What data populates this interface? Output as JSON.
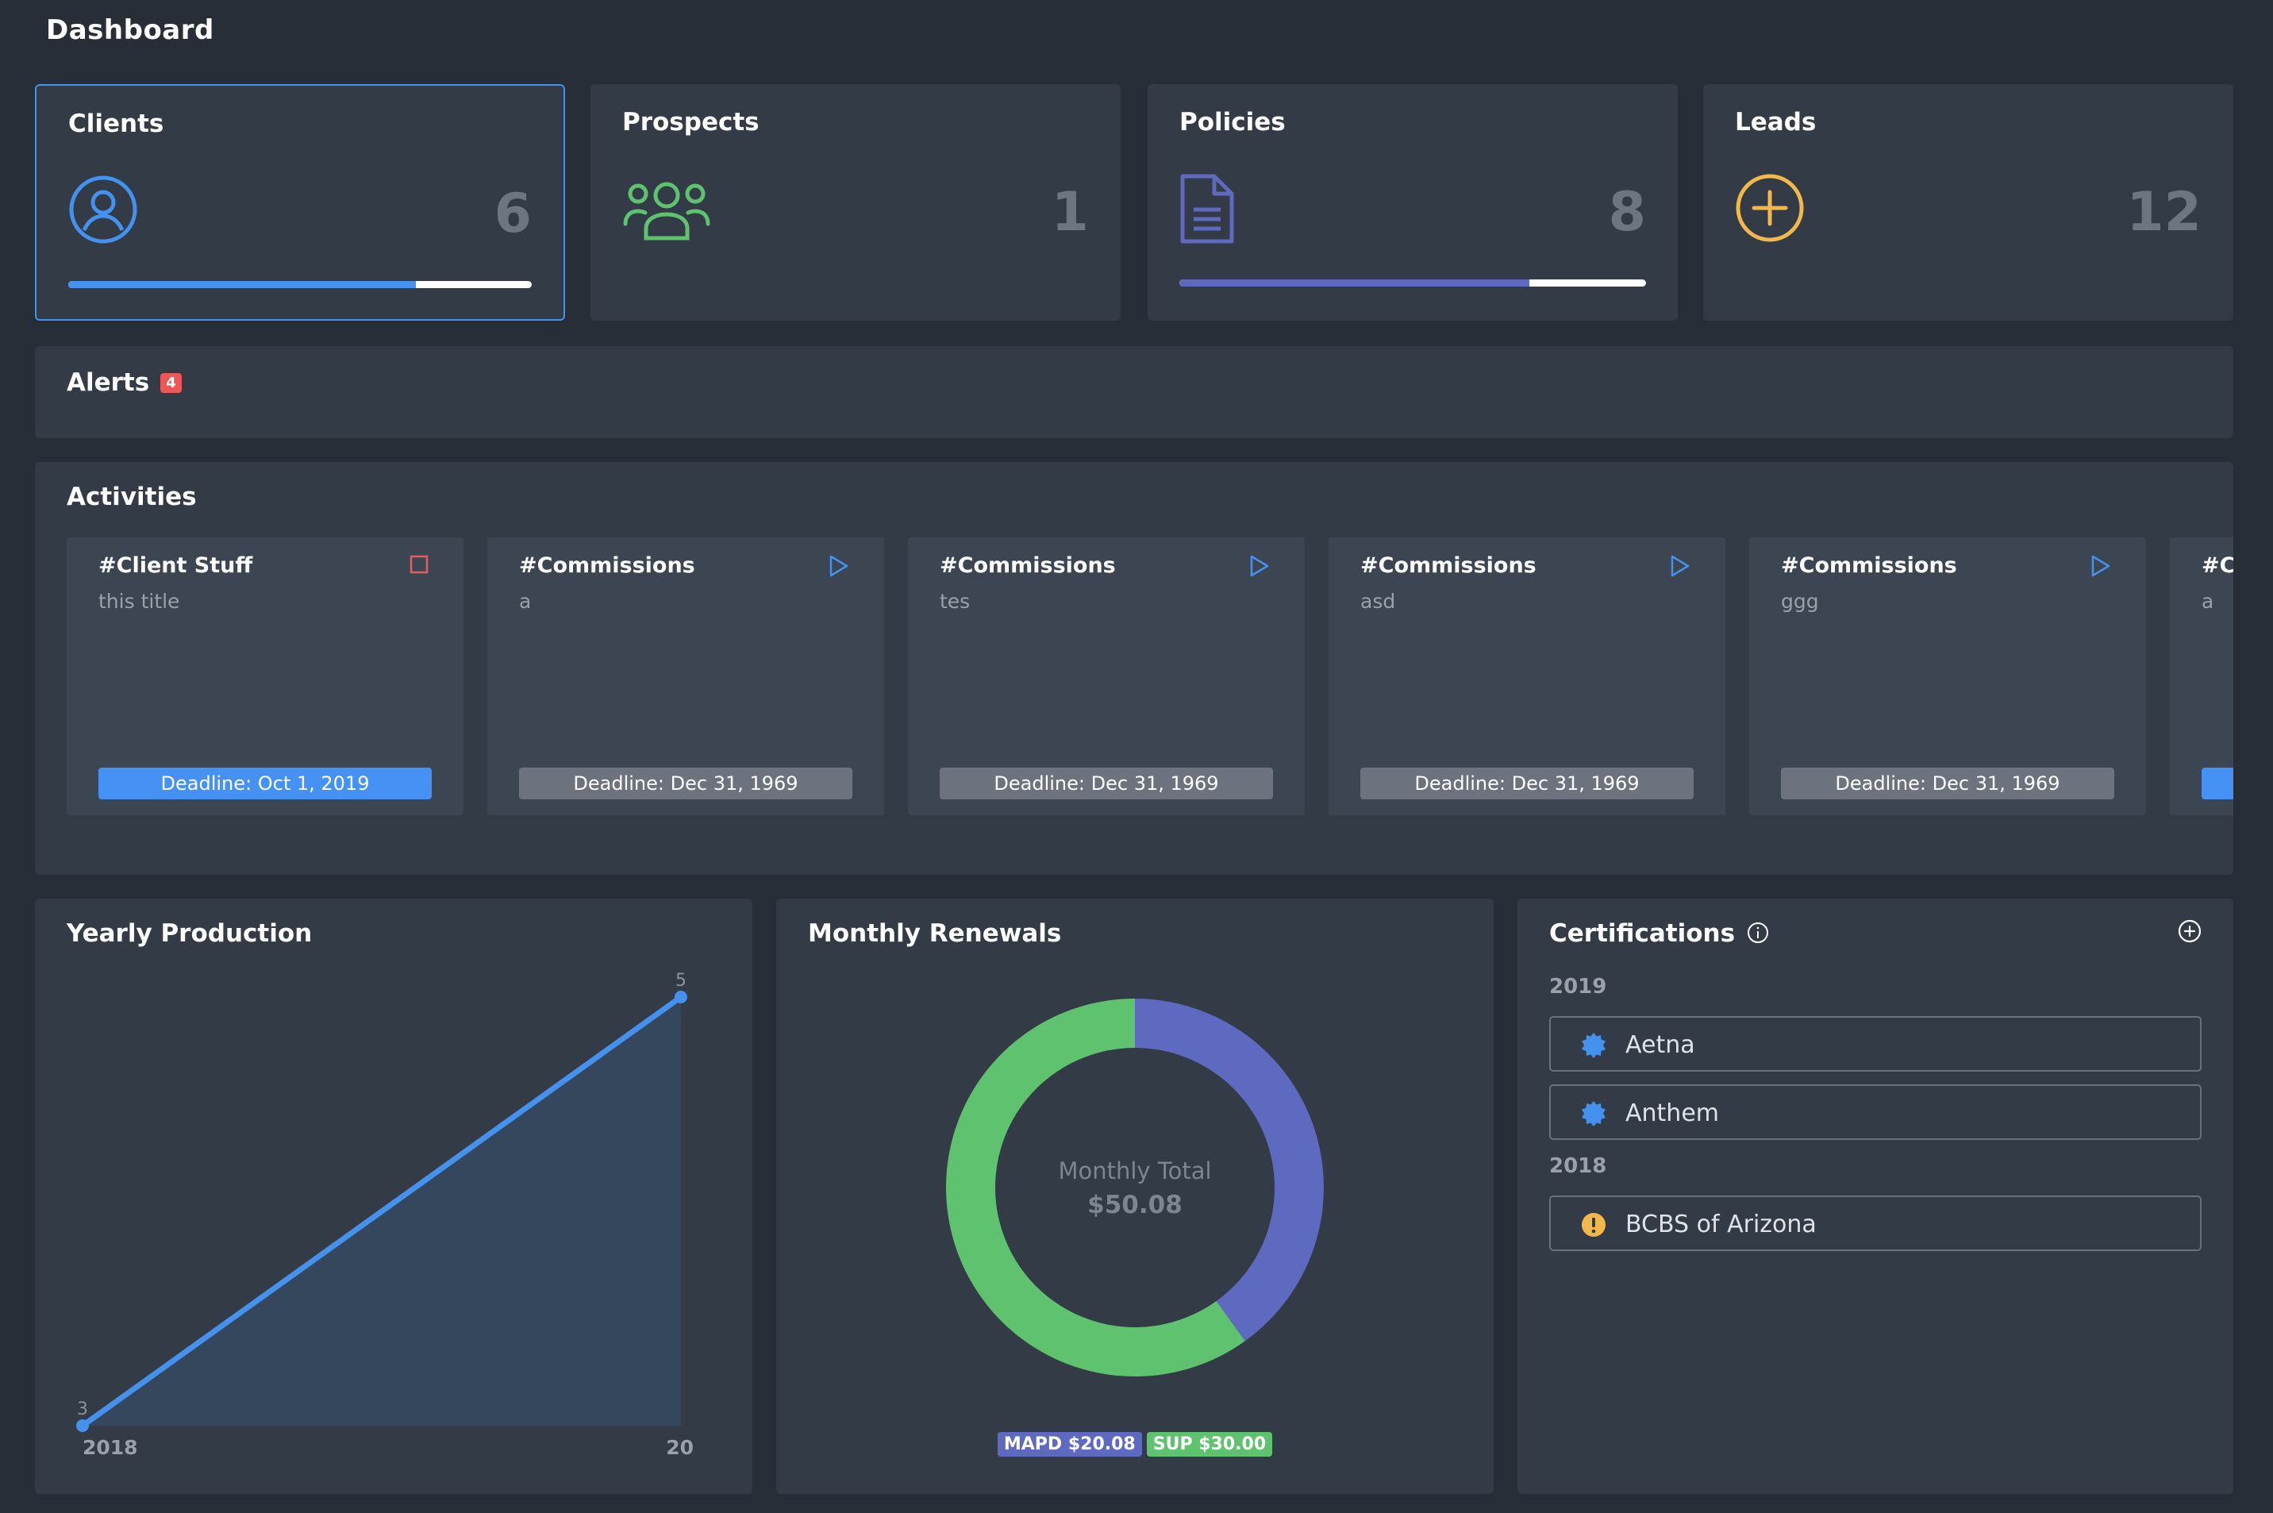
{
  "page": {
    "title": "Dashboard"
  },
  "stats": {
    "clients": {
      "title": "Clients",
      "count": "6",
      "progress": 0.75,
      "color": "#4591ee",
      "icon": "user-circle-icon"
    },
    "prospects": {
      "title": "Prospects",
      "count": "1",
      "color": "#5ec26f",
      "icon": "users-group-icon"
    },
    "policies": {
      "title": "Policies",
      "count": "8",
      "progress": 0.75,
      "color": "#5d6ac0",
      "icon": "document-icon"
    },
    "leads": {
      "title": "Leads",
      "count": "12",
      "color": "#f2b84b",
      "icon": "plus-circle-icon"
    }
  },
  "alerts": {
    "title": "Alerts",
    "count": "4"
  },
  "activities": {
    "title": "Activities",
    "items": [
      {
        "tag": "#Client Stuff",
        "description": "this title",
        "deadline": "Deadline: Oct 1, 2019",
        "icon": "stop-square-icon",
        "active": true
      },
      {
        "tag": "#Commissions",
        "description": "a",
        "deadline": "Deadline: Dec 31, 1969",
        "icon": "play-icon",
        "active": false
      },
      {
        "tag": "#Commissions",
        "description": "tes",
        "deadline": "Deadline: Dec 31, 1969",
        "icon": "play-icon",
        "active": false
      },
      {
        "tag": "#Commissions",
        "description": "asd",
        "deadline": "Deadline: Dec 31, 1969",
        "icon": "play-icon",
        "active": false
      },
      {
        "tag": "#Commissions",
        "description": "ggg",
        "deadline": "Deadline: Dec 31, 1969",
        "icon": "play-icon",
        "active": false
      },
      {
        "tag": "#Commissions",
        "description": "a",
        "deadline": "",
        "icon": "play-icon",
        "active": true
      }
    ]
  },
  "yearly_production": {
    "title": "Yearly Production"
  },
  "monthly_renewals": {
    "title": "Monthly Renewals",
    "center_label": "Monthly Total",
    "center_value": "$50.08",
    "legend": [
      {
        "label": "MAPD $20.08",
        "color": "#5d6ac0"
      },
      {
        "label": "SUP $30.00",
        "color": "#5ec26f"
      }
    ]
  },
  "certifications": {
    "title": "Certifications",
    "groups": [
      {
        "year": "2019",
        "items": [
          {
            "name": "Aetna",
            "status_icon": "verified-badge-icon",
            "color": "#4591ee"
          },
          {
            "name": "Anthem",
            "status_icon": "verified-badge-icon",
            "color": "#4591ee"
          }
        ]
      },
      {
        "year": "2018",
        "items": [
          {
            "name": "BCBS of Arizona",
            "status_icon": "warning-circle-icon",
            "color": "#f2b84b"
          }
        ]
      }
    ]
  },
  "chart_data": [
    {
      "type": "area",
      "title": "Yearly Production",
      "x": [
        "2018",
        "20"
      ],
      "values": [
        3,
        5
      ],
      "data_labels": [
        "3",
        "5"
      ],
      "color": "#4591ee"
    },
    {
      "type": "pie",
      "title": "Monthly Renewals",
      "labels": [
        "MAPD",
        "SUP"
      ],
      "values": [
        20.08,
        30.0
      ],
      "colors": [
        "#5d6ac0",
        "#5ec26f"
      ],
      "donut": true
    }
  ]
}
